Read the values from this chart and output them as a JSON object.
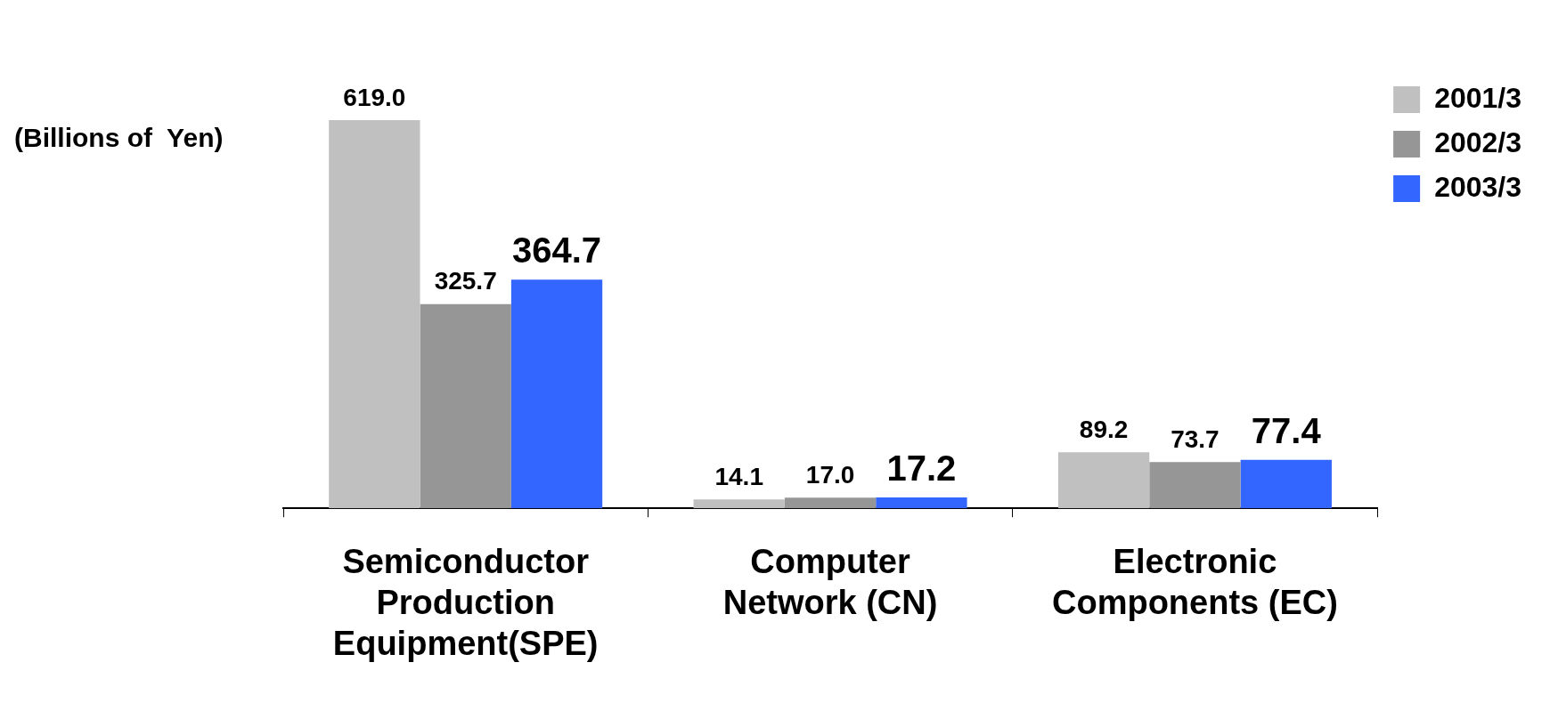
{
  "chart_data": {
    "type": "bar",
    "ylabel": "(Billions of  Yen)",
    "categories": [
      "Semiconductor Production Equipment(SPE)",
      "Computer Network (CN)",
      "Electronic Components (EC)"
    ],
    "series": [
      {
        "name": "2001/3",
        "color": "#c0c0c0",
        "values": [
          619.0,
          14.1,
          89.2
        ],
        "value_labels": [
          "619.0",
          "14.1",
          "89.2"
        ]
      },
      {
        "name": "2002/3",
        "color": "#969696",
        "values": [
          325.7,
          17.0,
          73.7
        ],
        "value_labels": [
          "325.7",
          "17.0",
          "73.7"
        ]
      },
      {
        "name": "2003/3",
        "color": "#3366ff",
        "values": [
          364.7,
          17.2,
          77.4
        ],
        "value_labels": [
          "364.7",
          "17.2",
          "77.4"
        ]
      }
    ],
    "legend": "top right"
  }
}
